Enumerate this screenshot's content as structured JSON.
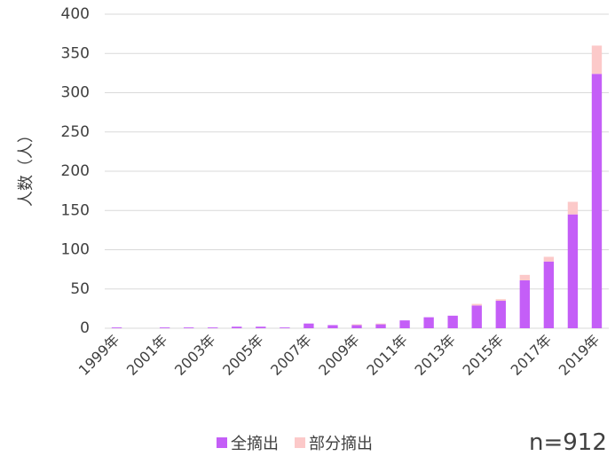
{
  "chart_data": {
    "type": "bar",
    "stacked": true,
    "title": "",
    "xlabel": "",
    "ylabel": "人数（人）",
    "ylim": [
      0,
      400
    ],
    "yticks": [
      0,
      50,
      100,
      150,
      200,
      250,
      300,
      350,
      400
    ],
    "categories": [
      "1999年",
      "2000年",
      "2001年",
      "2002年",
      "2003年",
      "2004年",
      "2005年",
      "2006年",
      "2007年",
      "2008年",
      "2009年",
      "2010年",
      "2011年",
      "2012年",
      "2013年",
      "2014年",
      "2015年",
      "2016年",
      "2017年",
      "2018年",
      "2019年"
    ],
    "category_labels_shown": [
      "1999年",
      "2001年",
      "2003年",
      "2005年",
      "2007年",
      "2009年",
      "2011年",
      "2013年",
      "2015年",
      "2017年",
      "2019年"
    ],
    "series": [
      {
        "name": "全摘出",
        "color": "#c45ef7",
        "values": [
          1,
          0,
          1,
          1,
          1,
          2,
          2,
          1,
          6,
          4,
          4,
          5,
          10,
          14,
          16,
          29,
          35,
          61,
          85,
          145,
          324
        ]
      },
      {
        "name": "部分摘出",
        "color": "#fcc9c9",
        "values": [
          0,
          0,
          0,
          0,
          0,
          0,
          0,
          0,
          0,
          0,
          1,
          1,
          0,
          0,
          0,
          2,
          2,
          7,
          6,
          16,
          36
        ]
      }
    ],
    "grid": true,
    "legend_position": "bottom",
    "annotation": "n=912"
  }
}
